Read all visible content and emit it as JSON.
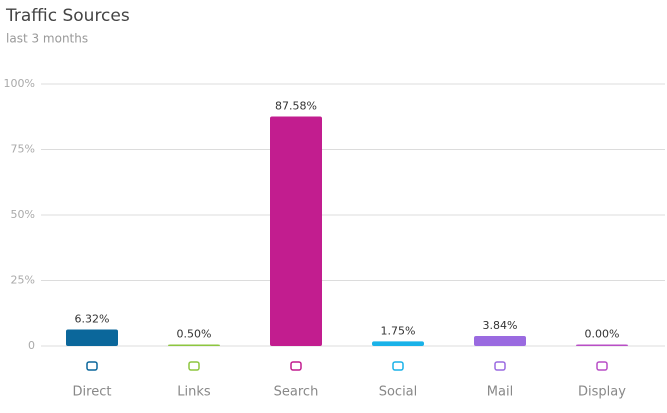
{
  "chart_data": {
    "type": "bar",
    "title": "Traffic Sources",
    "subtitle": "last 3 months",
    "categories": [
      "Direct",
      "Links",
      "Search",
      "Social",
      "Mail",
      "Display"
    ],
    "values": [
      6.32,
      0.5,
      87.58,
      1.75,
      3.84,
      0.0
    ],
    "value_labels": [
      "6.32%",
      "0.50%",
      "87.58%",
      "1.75%",
      "3.84%",
      "0.00%"
    ],
    "colors": [
      "#0b679b",
      "#8dc63f",
      "#c21d8f",
      "#1ab2e8",
      "#9a6ae0",
      "#b84ec6"
    ],
    "ylim": [
      0,
      100
    ],
    "yticks": [
      {
        "value": 0,
        "label": "0"
      },
      {
        "value": 25,
        "label": "25%"
      },
      {
        "value": 50,
        "label": "50%"
      },
      {
        "value": 75,
        "label": "75%"
      },
      {
        "value": 100,
        "label": "100%"
      }
    ],
    "grid": true
  }
}
